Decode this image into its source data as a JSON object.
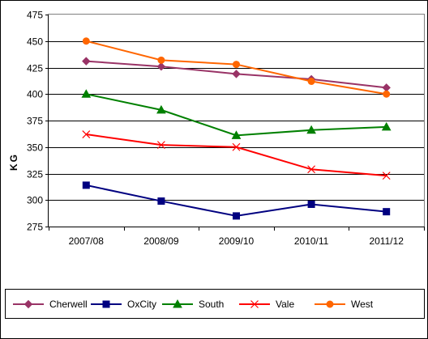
{
  "chart_data": {
    "type": "line",
    "title": "",
    "xlabel": "",
    "ylabel": "KG",
    "categories": [
      "2007/08",
      "2008/09",
      "2009/10",
      "2010/11",
      "2011/12"
    ],
    "ylim": [
      275,
      475
    ],
    "yticks": [
      "275",
      "300",
      "325",
      "350",
      "375",
      "400",
      "425",
      "450",
      "475"
    ],
    "grid": "horizontal",
    "legend_position": "bottom",
    "series": [
      {
        "name": "Cherwell",
        "values": [
          431,
          426,
          419,
          414,
          406
        ],
        "color": "#993366",
        "marker": "diamond"
      },
      {
        "name": "OxCity",
        "values": [
          314,
          299,
          285,
          296,
          289
        ],
        "color": "#000080",
        "marker": "square"
      },
      {
        "name": "South",
        "values": [
          400,
          385,
          361,
          366,
          369
        ],
        "color": "#008000",
        "marker": "triangle"
      },
      {
        "name": "Vale",
        "values": [
          362,
          352,
          350,
          329,
          323
        ],
        "color": "#ff0000",
        "marker": "x"
      },
      {
        "name": "West",
        "values": [
          450,
          432,
          428,
          412,
          400
        ],
        "color": "#ff6600",
        "marker": "circle"
      }
    ]
  }
}
